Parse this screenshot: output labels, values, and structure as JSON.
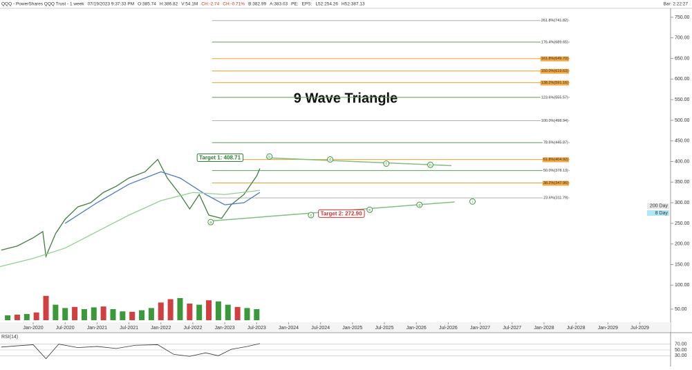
{
  "header": {
    "fields": [
      {
        "text": "QQQ - PowerShares QQQ Trust - 1 week",
        "color": "#333"
      },
      {
        "text": "07/19/2023 9:37:33 PM",
        "color": "#333"
      },
      {
        "text": "O:385.74",
        "color": "#333"
      },
      {
        "text": "H:386.82",
        "color": "#333"
      },
      {
        "text": "V:54.1M",
        "color": "#333"
      },
      {
        "text": "CH:-2.74",
        "color": "#d32f2f"
      },
      {
        "text": "CH:-0.71%",
        "color": "#d32f2f"
      },
      {
        "text": "B:382.99",
        "color": "#333"
      },
      {
        "text": "A:383.03",
        "color": "#333"
      },
      {
        "text": "PE:",
        "color": "#333"
      },
      {
        "text": "EPS:",
        "color": "#333"
      },
      {
        "text": "L52:254.26",
        "color": "#333"
      },
      {
        "text": "H52:387.13",
        "color": "#333"
      }
    ],
    "bar": "Bar: 2:22:27"
  },
  "chart_data": {
    "type": "line",
    "title": "9 Wave Triangle",
    "xlim": [
      2019.48,
      2029.96
    ],
    "xticks": [
      {
        "value": 2020.0,
        "label": "Jan-2020"
      },
      {
        "value": 2020.5,
        "label": "Jul-2020"
      },
      {
        "value": 2021.0,
        "label": "Jan-2021"
      },
      {
        "value": 2021.5,
        "label": "Jul-2021"
      },
      {
        "value": 2022.0,
        "label": "Jan-2022"
      },
      {
        "value": 2022.5,
        "label": "Jul-2022"
      },
      {
        "value": 2023.0,
        "label": "Jan-2023"
      },
      {
        "value": 2023.5,
        "label": "Jul-2023"
      },
      {
        "value": 2024.0,
        "label": "Jan-2024"
      },
      {
        "value": 2024.5,
        "label": "Jul-2024"
      },
      {
        "value": 2025.0,
        "label": "Jan-2025"
      },
      {
        "value": 2025.5,
        "label": "Jul-2025"
      },
      {
        "value": 2026.0,
        "label": "Jan-2026"
      },
      {
        "value": 2026.5,
        "label": "Jul-2026"
      },
      {
        "value": 2027.0,
        "label": "Jan-2027"
      },
      {
        "value": 2027.5,
        "label": "Jul-2027"
      },
      {
        "value": 2028.0,
        "label": "Jan-2028"
      },
      {
        "value": 2028.5,
        "label": "Jul-2028"
      },
      {
        "value": 2029.0,
        "label": "Jan-2029"
      },
      {
        "value": 2029.5,
        "label": "Jul-2029"
      }
    ],
    "ylim": [
      15,
      770
    ],
    "yticks": [
      {
        "value": 750,
        "label": "750.00"
      },
      {
        "value": 700,
        "label": "700.00"
      },
      {
        "value": 650,
        "label": "650.00"
      },
      {
        "value": 600,
        "label": "600.00"
      },
      {
        "value": 550,
        "label": "550.00"
      },
      {
        "value": 500,
        "label": "500.00"
      },
      {
        "value": 450,
        "label": "450.00"
      },
      {
        "value": 400,
        "label": "400.00"
      },
      {
        "value": 350,
        "label": "350.00"
      },
      {
        "value": 300,
        "label": "300.00"
      },
      {
        "value": 250,
        "label": "250.00"
      },
      {
        "value": 200,
        "label": "200.00"
      },
      {
        "value": 150,
        "label": "150.00"
      },
      {
        "value": 100,
        "label": "100.00"
      }
    ],
    "series": [
      {
        "color": "#3f7f3f",
        "x": [
          2019.5,
          2019.75,
          2020.0,
          2020.15,
          2020.2,
          2020.35,
          2020.5,
          2020.7,
          2020.9,
          2021.1,
          2021.3,
          2021.5,
          2021.75,
          2021.95,
          2022.1,
          2022.3,
          2022.45,
          2022.6,
          2022.75,
          2022.95,
          2023.1,
          2023.3,
          2023.5,
          2023.55
        ],
        "values": [
          185,
          195,
          215,
          230,
          170,
          225,
          260,
          290,
          300,
          325,
          340,
          360,
          375,
          405,
          360,
          320,
          285,
          320,
          270,
          262,
          295,
          320,
          365,
          383
        ]
      },
      {
        "color": "#4a78c8",
        "x": [
          2020.5,
          2021.0,
          2021.5,
          2022.0,
          2022.3,
          2022.7,
          2023.0,
          2023.3,
          2023.55
        ],
        "values": [
          250,
          300,
          345,
          375,
          360,
          320,
          295,
          300,
          325
        ]
      },
      {
        "color": "#8fd18f",
        "x": [
          2019.48,
          2020.0,
          2020.5,
          2021.0,
          2021.5,
          2022.0,
          2022.5,
          2023.0,
          2023.55
        ],
        "values": [
          145,
          165,
          190,
          230,
          270,
          305,
          325,
          320,
          330
        ]
      }
    ],
    "fib_levels": [
      {
        "label": "261.8%(741.82)",
        "value": 741.82,
        "color": "#b0b0b0"
      },
      {
        "label": "176.4%(689.65)",
        "value": 689.65,
        "color": "#5aa05a"
      },
      {
        "label": "161.8%(649.70)",
        "value": 649.7,
        "color": "#f0a030"
      },
      {
        "label": "150.0%(619.63)",
        "value": 619.63,
        "color": "#f0a030"
      },
      {
        "label": "138.2%(591.16)",
        "value": 591.16,
        "color": "#f0a030"
      },
      {
        "label": "123.6%(555.57)",
        "value": 555.57,
        "color": "#5aa05a"
      },
      {
        "label": "100.0%(498.94)",
        "value": 498.94,
        "color": "#b0b0b0"
      },
      {
        "label": "78.6%(445.87)",
        "value": 445.87,
        "color": "#5aa05a"
      },
      {
        "label": "61.8%(404.92)",
        "value": 404.92,
        "color": "#f0a030"
      },
      {
        "label": "50.0%(378.13)",
        "value": 378.13,
        "color": "#5aa05a"
      },
      {
        "label": "38.2%(347.96)",
        "value": 347.96,
        "color": "#f0a030"
      },
      {
        "label": "23.6%(311.79)",
        "value": 311.79,
        "color": "#b0b0b0"
      }
    ],
    "trendlines": [
      {
        "color": "#7fbf7f",
        "x": [
          2023.65,
          2026.55
        ],
        "values": [
          409,
          390
        ]
      },
      {
        "color": "#7fbf7f",
        "x": [
          2022.8,
          2026.6
        ],
        "values": [
          256,
          302
        ]
      }
    ],
    "waves": [
      {
        "label": "a",
        "x": 2022.78,
        "value": 253
      },
      {
        "label": "b",
        "x": 2023.7,
        "value": 412
      },
      {
        "label": "c",
        "x": 2024.35,
        "value": 270
      },
      {
        "label": "d",
        "x": 2024.65,
        "value": 405
      },
      {
        "label": "e",
        "x": 2025.27,
        "value": 283
      },
      {
        "label": "f",
        "x": 2025.53,
        "value": 395
      },
      {
        "label": "g",
        "x": 2026.05,
        "value": 295
      },
      {
        "label": "h",
        "x": 2026.22,
        "value": 392
      },
      {
        "label": "i",
        "x": 2026.88,
        "value": 303
      }
    ],
    "targets": [
      {
        "label": "Target 1: 408.71",
        "x": 2022.6,
        "value": 408.71,
        "color": "#2e7d32"
      },
      {
        "label": "Target 2: 272.90",
        "x": 2024.5,
        "value": 272.9,
        "color": "#d32f2f"
      }
    ],
    "tags": [
      {
        "label": "200 Day",
        "value": 292,
        "color": "#e8e8e8"
      },
      {
        "label": "8 Day",
        "value": 275,
        "color": "#aee6f5"
      }
    ],
    "volume": {
      "ylim": [
        0,
        150
      ],
      "yticks": [
        {
          "value": 50,
          "label": "50.00"
        }
      ],
      "x": [
        2019.6,
        2019.75,
        2019.9,
        2020.05,
        2020.2,
        2020.35,
        2020.5,
        2020.65,
        2020.8,
        2020.95,
        2021.1,
        2021.25,
        2021.4,
        2021.55,
        2021.7,
        2021.85,
        2022.0,
        2022.15,
        2022.3,
        2022.45,
        2022.6,
        2022.75,
        2022.9,
        2023.05,
        2023.2,
        2023.35,
        2023.5
      ],
      "values": [
        22,
        25,
        28,
        35,
        110,
        70,
        55,
        60,
        50,
        58,
        62,
        50,
        40,
        38,
        45,
        55,
        80,
        95,
        100,
        75,
        70,
        90,
        85,
        70,
        60,
        55,
        50
      ],
      "colors": [
        "#3a9a3a",
        "#d04040",
        "#3a9a3a",
        "#d04040",
        "#d04040",
        "#3a9a3a",
        "#3a9a3a",
        "#d04040",
        "#3a9a3a",
        "#3a9a3a",
        "#d04040",
        "#3a9a3a",
        "#3a9a3a",
        "#d04040",
        "#3a9a3a",
        "#3a9a3a",
        "#d04040",
        "#d04040",
        "#3a9a3a",
        "#d04040",
        "#3a9a3a",
        "#d04040",
        "#3a9a3a",
        "#3a9a3a",
        "#d04040",
        "#3a9a3a",
        "#3a9a3a"
      ]
    },
    "rsi": {
      "label": "RSI(14)",
      "ylim": [
        0,
        100
      ],
      "yticks": [
        {
          "value": 70,
          "label": "70.00"
        },
        {
          "value": 50,
          "label": "50.00"
        },
        {
          "value": 30,
          "label": "30.00"
        }
      ],
      "x": [
        2019.5,
        2019.8,
        2020.0,
        2020.2,
        2020.4,
        2020.7,
        2021.0,
        2021.3,
        2021.6,
        2021.95,
        2022.2,
        2022.45,
        2022.7,
        2022.9,
        2023.1,
        2023.35,
        2023.55
      ],
      "values": [
        60,
        65,
        68,
        20,
        70,
        58,
        62,
        55,
        66,
        68,
        35,
        28,
        40,
        30,
        52,
        62,
        72
      ]
    }
  }
}
